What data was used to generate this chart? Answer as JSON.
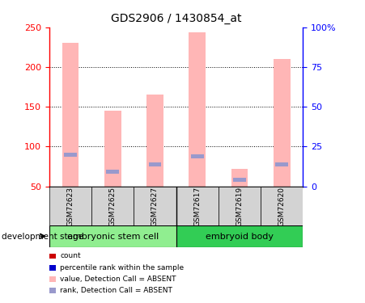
{
  "title": "GDS2906 / 1430854_at",
  "samples": [
    "GSM72623",
    "GSM72625",
    "GSM72627",
    "GSM72617",
    "GSM72619",
    "GSM72620"
  ],
  "group_labels": [
    "embryonic stem cell",
    "embryoid body"
  ],
  "group_colors": [
    "#90ee90",
    "#32cd55"
  ],
  "bar_values": [
    230,
    145,
    165,
    244,
    72,
    210
  ],
  "rank_values": [
    90,
    68,
    78,
    88,
    58,
    78
  ],
  "bar_color_pink": "#ffb6b6",
  "bar_color_blue": "#9999cc",
  "ylim_left": [
    50,
    250
  ],
  "ylim_right": [
    0,
    100
  ],
  "yticks_left": [
    50,
    100,
    150,
    200,
    250
  ],
  "yticks_right": [
    0,
    25,
    50,
    75,
    100
  ],
  "ytick_labels_right": [
    "0",
    "25",
    "50",
    "75",
    "100%"
  ],
  "grid_values": [
    100,
    150,
    200
  ],
  "background_color": "#ffffff",
  "legend_items": [
    {
      "color": "#cc0000",
      "label": "count"
    },
    {
      "color": "#0000cc",
      "label": "percentile rank within the sample"
    },
    {
      "color": "#ffb6b6",
      "label": "value, Detection Call = ABSENT"
    },
    {
      "color": "#9999cc",
      "label": "rank, Detection Call = ABSENT"
    }
  ],
  "development_stage_label": "development stage",
  "bar_width": 0.4,
  "rank_bar_height": 5,
  "rank_bar_width": 0.3
}
